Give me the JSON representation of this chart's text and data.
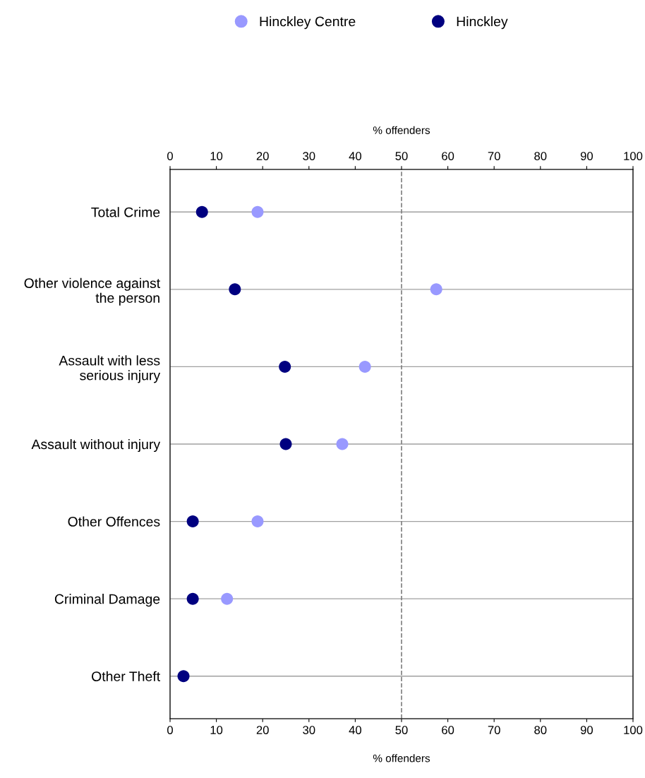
{
  "chart_data": {
    "type": "scatter",
    "orientation": "horizontal",
    "categories": [
      "Total Crime",
      "Other violence against\nthe person",
      "Assault with less\nserious injury",
      "Assault without injury",
      "Other Offences",
      "Criminal Damage",
      "Other Theft"
    ],
    "series": [
      {
        "name": "Hinckley Centre",
        "color": "#9999ff",
        "values": [
          18.9,
          57.5,
          42.1,
          37.2,
          18.9,
          12.3,
          null
        ]
      },
      {
        "name": "Hinckley",
        "color": "#000080",
        "values": [
          6.9,
          14.0,
          24.8,
          25.0,
          4.9,
          4.9,
          2.9
        ]
      }
    ],
    "xlabel": "% offenders",
    "x2label": "% offenders",
    "xlim": [
      0,
      100
    ],
    "xticks": [
      0,
      10,
      20,
      30,
      40,
      50,
      60,
      70,
      80,
      90,
      100
    ],
    "x2lim": [
      0,
      100
    ],
    "x2ticks": [
      0,
      10,
      20,
      30,
      40,
      50,
      60,
      70,
      80,
      90,
      100
    ],
    "ref_lines": [
      {
        "axis": "x",
        "value": 50,
        "color": "#808080",
        "line_style": "dashed"
      }
    ],
    "grid": "y",
    "legend": "top",
    "marker": "circle"
  }
}
